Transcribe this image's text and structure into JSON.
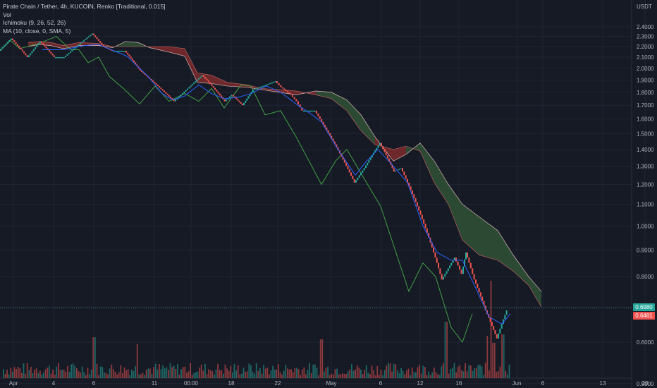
{
  "legend": {
    "title": "Pirate Chain / Tether, 4h, KUCOIN, Renko [Traditional, 0.015]",
    "vol": "Vol",
    "ichimoku": "Ichimoku (9, 26, 52, 26)",
    "ma": "MA (10, close, 0, SMA, 5)"
  },
  "currency": "USDT",
  "price_tags": {
    "last": "0.6980",
    "ma": "0.6461"
  },
  "colors": {
    "bg": "#161a25",
    "up": "#26a69a",
    "down": "#ef5350",
    "ma": "#2962ff",
    "lagging": "#43a047",
    "kumo_bear": "#7b2b2b",
    "kumo_bull": "#2f5236",
    "last_line": "#26a69a"
  },
  "chart_data": {
    "type": "renko",
    "title": "Pirate Chain / Tether, 4h, KUCOIN, Renko [Traditional, 0.015]",
    "box_size": 0.015,
    "y_axis": {
      "scale": "log",
      "ticks": [
        "2.4000",
        "2.3000",
        "2.2000",
        "2.1000",
        "2.0000",
        "1.9000",
        "1.8000",
        "1.7000",
        "1.6000",
        "1.5000",
        "1.4000",
        "1.3000",
        "1.2000",
        "1.1000",
        "1.0000",
        "0.9000",
        "0.8000",
        "0.7000",
        "0.6000",
        "0.5000"
      ]
    },
    "x_axis": {
      "ticks": [
        "Apr",
        "4",
        "6",
        "11",
        "00:00",
        "18",
        "22",
        "May",
        "6",
        "12",
        "16",
        "Jun",
        "6",
        "13",
        "20"
      ]
    },
    "renko_path": [
      [
        0,
        2.16
      ],
      [
        17,
        2.28
      ],
      [
        40,
        2.1
      ],
      [
        58,
        2.25
      ],
      [
        78,
        2.1
      ],
      [
        92,
        2.1
      ],
      [
        132,
        2.33
      ],
      [
        148,
        2.2
      ],
      [
        160,
        2.16
      ],
      [
        178,
        2.16
      ],
      [
        200,
        1.98
      ],
      [
        248,
        1.73
      ],
      [
        258,
        1.78
      ],
      [
        288,
        1.94
      ],
      [
        320,
        1.73
      ],
      [
        330,
        1.78
      ],
      [
        345,
        1.7
      ],
      [
        360,
        1.82
      ],
      [
        392,
        1.89
      ],
      [
        400,
        1.84
      ],
      [
        414,
        1.78
      ],
      [
        422,
        1.73
      ],
      [
        430,
        1.66
      ],
      [
        448,
        1.66
      ],
      [
        460,
        1.56
      ],
      [
        504,
        1.21
      ],
      [
        518,
        1.29
      ],
      [
        540,
        1.44
      ],
      [
        560,
        1.27
      ],
      [
        570,
        1.29
      ],
      [
        628,
        0.79
      ],
      [
        646,
        0.87
      ],
      [
        656,
        0.81
      ],
      [
        662,
        0.89
      ],
      [
        674,
        0.79
      ],
      [
        690,
        0.69
      ],
      [
        706,
        0.61
      ],
      [
        720,
        0.69
      ]
    ],
    "ma_series": [
      [
        60,
        2.17
      ],
      [
        90,
        2.17
      ],
      [
        120,
        2.21
      ],
      [
        140,
        2.22
      ],
      [
        158,
        2.17
      ],
      [
        180,
        2.11
      ],
      [
        210,
        1.93
      ],
      [
        230,
        1.79
      ],
      [
        245,
        1.74
      ],
      [
        262,
        1.77
      ],
      [
        282,
        1.86
      ],
      [
        300,
        1.79
      ],
      [
        318,
        1.75
      ],
      [
        338,
        1.76
      ],
      [
        356,
        1.79
      ],
      [
        378,
        1.85
      ],
      [
        398,
        1.8
      ],
      [
        420,
        1.71
      ],
      [
        440,
        1.64
      ],
      [
        456,
        1.58
      ],
      [
        478,
        1.41
      ],
      [
        504,
        1.25
      ],
      [
        520,
        1.33
      ],
      [
        536,
        1.4
      ],
      [
        556,
        1.31
      ],
      [
        578,
        1.21
      ],
      [
        600,
        1.0
      ],
      [
        620,
        0.89
      ],
      [
        640,
        0.86
      ],
      [
        656,
        0.86
      ],
      [
        675,
        0.76
      ],
      [
        694,
        0.67
      ],
      [
        712,
        0.65
      ],
      [
        724,
        0.68
      ]
    ],
    "lagging_span": [
      [
        0,
        2.16
      ],
      [
        15,
        2.26
      ],
      [
        28,
        2.18
      ],
      [
        55,
        2.23
      ],
      [
        80,
        2.3
      ],
      [
        100,
        2.17
      ],
      [
        112,
        2.17
      ],
      [
        125,
        2.05
      ],
      [
        140,
        2.1
      ],
      [
        155,
        1.93
      ],
      [
        175,
        1.83
      ],
      [
        198,
        1.71
      ],
      [
        220,
        1.85
      ],
      [
        240,
        1.73
      ],
      [
        262,
        1.79
      ],
      [
        282,
        1.73
      ],
      [
        300,
        1.83
      ],
      [
        318,
        1.68
      ],
      [
        342,
        1.86
      ],
      [
        356,
        1.85
      ],
      [
        376,
        1.63
      ],
      [
        398,
        1.66
      ],
      [
        420,
        1.48
      ],
      [
        456,
        1.2
      ],
      [
        476,
        1.33
      ],
      [
        492,
        1.4
      ],
      [
        540,
        1.09
      ],
      [
        580,
        0.75
      ],
      [
        600,
        0.85
      ],
      [
        618,
        0.8
      ],
      [
        640,
        0.64
      ],
      [
        656,
        0.6
      ],
      [
        670,
        0.68
      ]
    ],
    "kumo_span_a": [
      [
        40,
        2.2
      ],
      [
        56,
        2.22
      ],
      [
        72,
        2.21
      ],
      [
        90,
        2.18
      ],
      [
        112,
        2.21
      ],
      [
        140,
        2.21
      ],
      [
        160,
        2.19
      ],
      [
        178,
        2.25
      ],
      [
        196,
        2.24
      ],
      [
        212,
        2.19
      ],
      [
        238,
        2.15
      ],
      [
        262,
        2.11
      ],
      [
        280,
        1.88
      ],
      [
        300,
        1.87
      ],
      [
        322,
        1.85
      ],
      [
        350,
        1.84
      ],
      [
        372,
        1.82
      ],
      [
        396,
        1.8
      ],
      [
        420,
        1.78
      ],
      [
        448,
        1.81
      ],
      [
        470,
        1.8
      ],
      [
        492,
        1.74
      ],
      [
        512,
        1.63
      ],
      [
        532,
        1.48
      ],
      [
        558,
        1.33
      ],
      [
        576,
        1.37
      ],
      [
        596,
        1.44
      ],
      [
        616,
        1.33
      ],
      [
        636,
        1.2
      ],
      [
        656,
        1.1
      ],
      [
        680,
        1.04
      ],
      [
        706,
        0.98
      ],
      [
        728,
        0.88
      ],
      [
        750,
        0.8
      ],
      [
        768,
        0.75
      ]
    ],
    "kumo_span_b": [
      [
        40,
        2.24
      ],
      [
        56,
        2.25
      ],
      [
        72,
        2.24
      ],
      [
        90,
        2.21
      ],
      [
        112,
        2.24
      ],
      [
        140,
        2.23
      ],
      [
        160,
        2.2
      ],
      [
        178,
        2.2
      ],
      [
        196,
        2.2
      ],
      [
        212,
        2.2
      ],
      [
        240,
        2.2
      ],
      [
        262,
        2.18
      ],
      [
        280,
        1.96
      ],
      [
        300,
        1.94
      ],
      [
        322,
        1.88
      ],
      [
        350,
        1.86
      ],
      [
        372,
        1.83
      ],
      [
        396,
        1.82
      ],
      [
        420,
        1.81
      ],
      [
        448,
        1.78
      ],
      [
        470,
        1.75
      ],
      [
        492,
        1.66
      ],
      [
        512,
        1.52
      ],
      [
        532,
        1.43
      ],
      [
        558,
        1.4
      ],
      [
        576,
        1.42
      ],
      [
        596,
        1.39
      ],
      [
        616,
        1.21
      ],
      [
        636,
        1.1
      ],
      [
        656,
        0.94
      ],
      [
        680,
        0.88
      ],
      [
        706,
        0.86
      ],
      [
        728,
        0.82
      ],
      [
        750,
        0.77
      ],
      [
        768,
        0.7
      ]
    ],
    "last_price": 0.698,
    "ma_last": 0.6461
  }
}
